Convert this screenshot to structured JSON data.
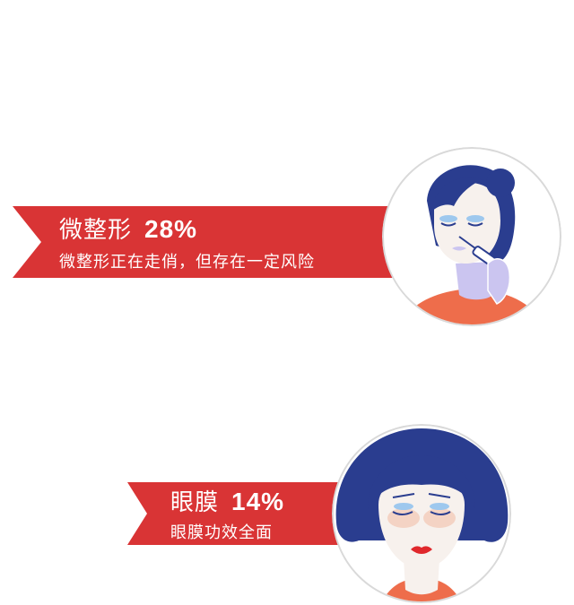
{
  "items": [
    {
      "title": "微整形",
      "percent": "28%",
      "subtitle": "微整形正在走俏，但存在一定风险",
      "icon": "woman-injection-icon"
    },
    {
      "title": "眼膜",
      "percent": "14%",
      "subtitle": "眼膜功效全面",
      "icon": "woman-eye-mask-icon"
    }
  ],
  "colors": {
    "ribbon": "#d93435",
    "hair": "#2a3d8f",
    "skin": "#f7f1ed",
    "shirt": "#ee6d4b",
    "lavender": "#cbc5f0",
    "ring": "#d9d9d9"
  }
}
